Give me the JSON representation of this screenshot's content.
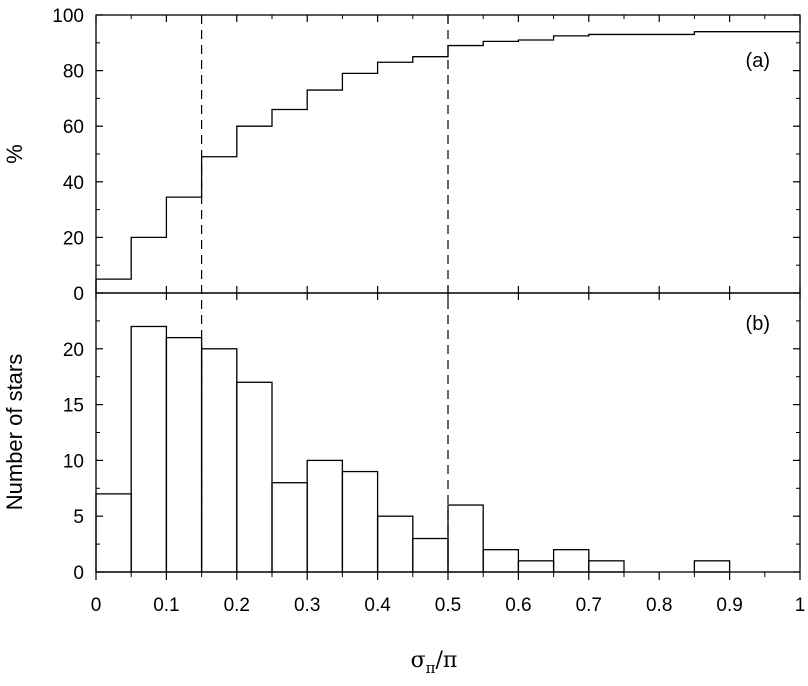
{
  "chart_data": [
    {
      "type": "line",
      "panel_label": "(a)",
      "ylabel": "%",
      "ylim": [
        0,
        100
      ],
      "yticks": [
        0,
        20,
        40,
        60,
        80,
        100
      ],
      "xlim": [
        0,
        1
      ],
      "step": "post",
      "x": [
        0.0,
        0.05,
        0.1,
        0.15,
        0.2,
        0.25,
        0.3,
        0.35,
        0.4,
        0.45,
        0.5,
        0.55,
        0.6,
        0.65,
        0.7,
        0.75,
        0.8,
        0.85,
        0.9,
        0.95
      ],
      "y": [
        5,
        20,
        34.5,
        49,
        60,
        66,
        73,
        79,
        83,
        85,
        89,
        90.5,
        91,
        92.5,
        93,
        93,
        93,
        94,
        94,
        94
      ],
      "vlines": [
        0.15,
        0.5
      ]
    },
    {
      "type": "bar",
      "panel_label": "(b)",
      "ylabel": "Number of stars",
      "ylim": [
        0,
        25
      ],
      "yticks": [
        0,
        5,
        10,
        15,
        20
      ],
      "xlim": [
        0,
        1
      ],
      "bin_edges": [
        0.0,
        0.05,
        0.1,
        0.15,
        0.2,
        0.25,
        0.3,
        0.35,
        0.4,
        0.45,
        0.5,
        0.55,
        0.6,
        0.65,
        0.7,
        0.75,
        0.8,
        0.85,
        0.9,
        0.95,
        1.0
      ],
      "values": [
        7,
        22,
        21,
        20,
        17,
        8,
        10,
        9,
        5,
        3,
        6,
        2,
        1,
        2,
        1,
        0,
        0,
        1,
        0,
        0
      ],
      "vlines": [
        0.15,
        0.5
      ]
    }
  ],
  "x_axis": {
    "label_main": "σ",
    "label_sub": "π",
    "label_tail": "/π",
    "ticks": [
      0,
      0.1,
      0.2,
      0.3,
      0.4,
      0.5,
      0.6,
      0.7,
      0.8,
      0.9,
      1
    ],
    "tick_labels": [
      "0",
      "0.1",
      "0.2",
      "0.3",
      "0.4",
      "0.5",
      "0.6",
      "0.7",
      "0.8",
      "0.9",
      "1"
    ]
  },
  "style": {
    "line_color": "#000000",
    "background": "#ffffff"
  }
}
